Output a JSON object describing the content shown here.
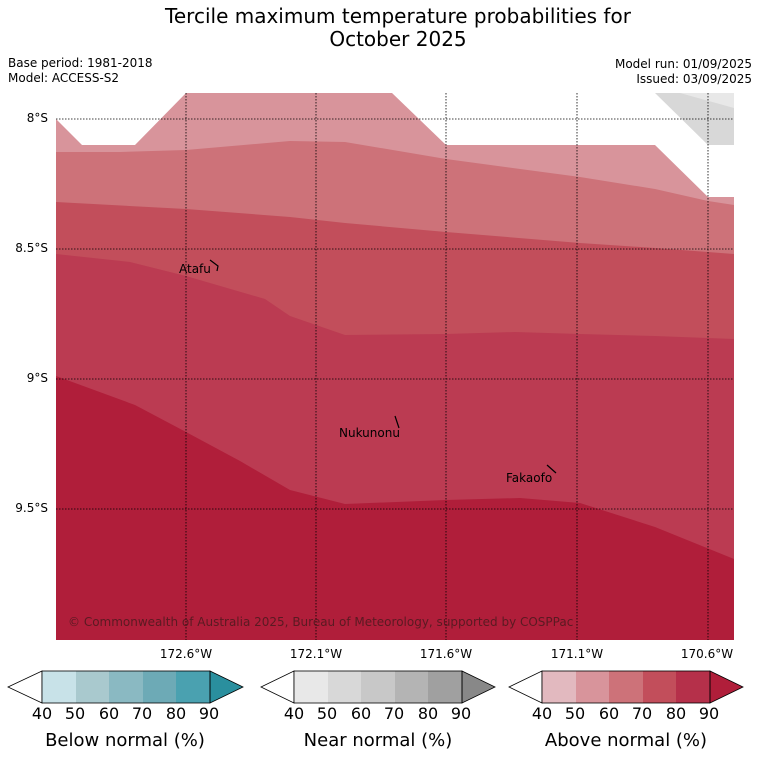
{
  "title": {
    "line1": "Tercile maximum temperature probabilities for",
    "line2": "October 2025"
  },
  "meta": {
    "base_period": "Base period: 1981-2018",
    "model": "Model: ACCESS-S2",
    "model_run": "Model run: 01/09/2025",
    "issued": "Issued: 03/09/2025"
  },
  "map": {
    "lat_labels": [
      "8°S",
      "8.5°S",
      "9°S",
      "9.5°S"
    ],
    "lon_labels": [
      "172.6°W",
      "172.1°W",
      "171.6°W",
      "171.1°W",
      "170.6°W"
    ],
    "places": [
      "Atafu",
      "Nukunonu",
      "Fakaofo"
    ],
    "copyright": "© Commonwealth of Australia 2025, Bureau of Meteorology, supported by COSPPac"
  },
  "colorbars": {
    "ticks": [
      "40",
      "50",
      "60",
      "70",
      "80",
      "90"
    ],
    "below": {
      "label": "Below normal (%)",
      "colors": [
        "#ffffff",
        "#c8e2e8",
        "#a9c9ce",
        "#8ab9c2",
        "#6daab6",
        "#4aa1b0",
        "#2a8f9e"
      ]
    },
    "near": {
      "label": "Near normal (%)",
      "colors": [
        "#ffffff",
        "#e8e8e8",
        "#d8d8d8",
        "#c8c8c8",
        "#b4b4b4",
        "#a0a0a0",
        "#888888"
      ]
    },
    "above": {
      "label": "Above normal (%)",
      "colors": [
        "#ffffff",
        "#e2b9bf",
        "#d8949b",
        "#cd7279",
        "#c24e5b",
        "#b5304a",
        "#b01e3a"
      ]
    }
  }
}
